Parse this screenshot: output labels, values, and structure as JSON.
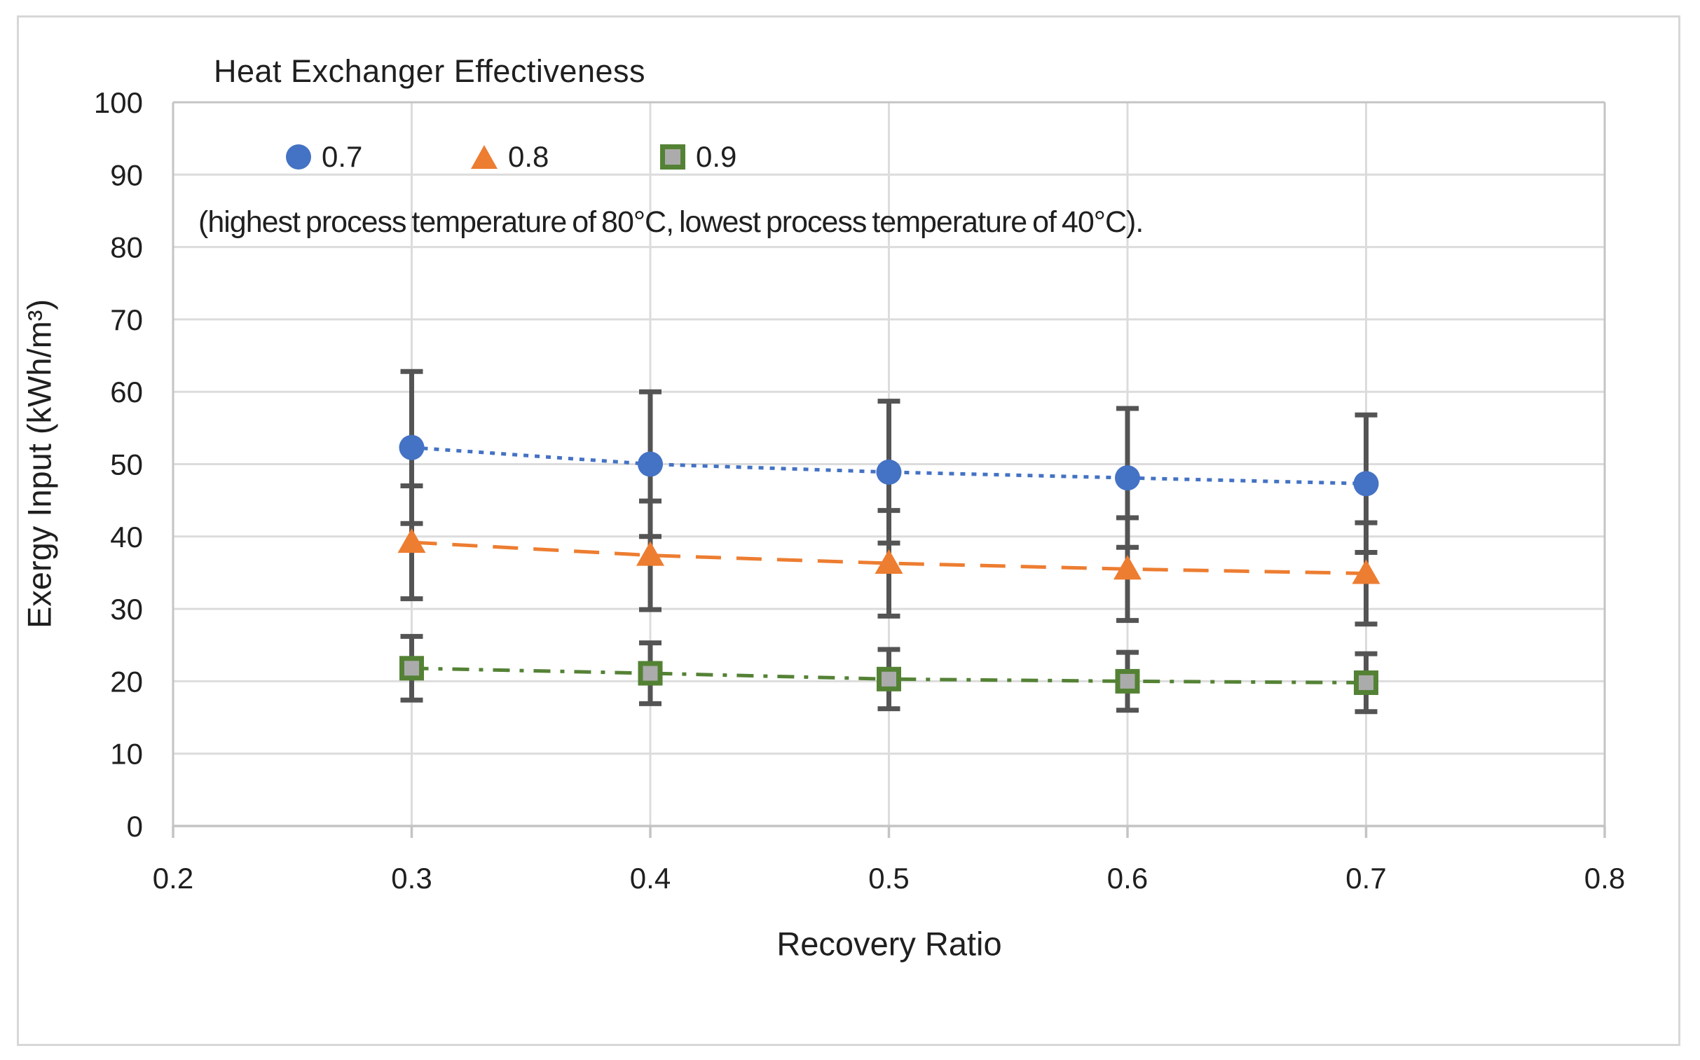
{
  "figure": {
    "background": "#ffffff",
    "border_color": "#d7d7d7"
  },
  "chart_data": {
    "type": "scatter",
    "title": "Heat Exchanger Effectiveness",
    "subtitle": "(highest process temperature of 80°C, lowest process temperature of 40°C).",
    "xlabel": "Recovery Ratio",
    "ylabel": "Exergy Input (kWh/m³)",
    "xlim": [
      0.2,
      0.8
    ],
    "ylim": [
      0,
      100
    ],
    "x_tick_labels": [
      "0.2",
      "0.3",
      "0.4",
      "0.5",
      "0.6",
      "0.7",
      "0.8"
    ],
    "y_tick_labels": [
      "0",
      "10",
      "20",
      "30",
      "40",
      "50",
      "60",
      "70",
      "80",
      "90",
      "100"
    ],
    "grid": "both",
    "legend_position": "top-left-inside",
    "x": [
      0.3,
      0.4,
      0.5,
      0.6,
      0.7
    ],
    "series": [
      {
        "name": "0.7",
        "marker": "circle",
        "line_style": "dotted",
        "color": "#4472c4",
        "values": [
          52.3,
          50.0,
          48.9,
          48.1,
          47.3
        ],
        "error": [
          10.5,
          10.0,
          9.8,
          9.6,
          9.5
        ]
      },
      {
        "name": "0.8",
        "marker": "triangle",
        "line_style": "dashed",
        "color": "#ed7d31",
        "values": [
          39.2,
          37.4,
          36.3,
          35.5,
          34.9
        ],
        "error": [
          7.8,
          7.5,
          7.3,
          7.1,
          7.0
        ]
      },
      {
        "name": "0.9",
        "marker": "square",
        "line_style": "dash-dot",
        "color": "#548235",
        "marker_fill": "#ababab",
        "values": [
          21.8,
          21.1,
          20.3,
          20.0,
          19.8
        ],
        "error": [
          4.4,
          4.2,
          4.1,
          4.0,
          4.0
        ]
      }
    ],
    "error_bar_color": "#545454",
    "gridline_color": "#dcdcdc",
    "axis_line_color": "#c4c4c4",
    "text_color": "#1f1f1f"
  }
}
